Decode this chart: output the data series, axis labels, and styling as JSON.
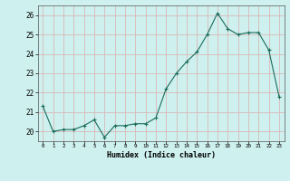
{
  "x": [
    0,
    1,
    2,
    3,
    4,
    5,
    6,
    7,
    8,
    9,
    10,
    11,
    12,
    13,
    14,
    15,
    16,
    17,
    18,
    19,
    20,
    21,
    22,
    23
  ],
  "y": [
    21.3,
    20.0,
    20.1,
    20.1,
    20.3,
    20.6,
    19.7,
    20.3,
    20.3,
    20.4,
    20.4,
    20.7,
    22.2,
    23.0,
    23.6,
    24.1,
    25.0,
    26.1,
    25.3,
    25.0,
    25.1,
    25.1,
    24.2,
    21.8
  ],
  "xlabel": "Humidex (Indice chaleur)",
  "ylim": [
    19.5,
    26.5
  ],
  "xlim": [
    -0.5,
    23.5
  ],
  "yticks": [
    20,
    21,
    22,
    23,
    24,
    25,
    26
  ],
  "xticks": [
    0,
    1,
    2,
    3,
    4,
    5,
    6,
    7,
    8,
    9,
    10,
    11,
    12,
    13,
    14,
    15,
    16,
    17,
    18,
    19,
    20,
    21,
    22,
    23
  ],
  "line_color": "#1a6b5a",
  "marker": "+",
  "marker_size": 3.0,
  "bg_color": "#cef0ee",
  "grid_color": "#d9b8b8",
  "line_width": 0.8
}
